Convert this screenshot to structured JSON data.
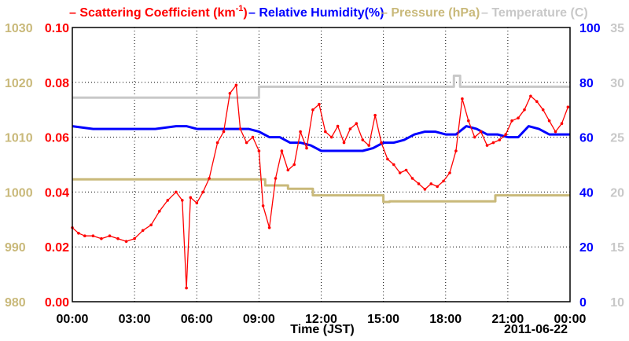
{
  "chart_data": {
    "type": "line",
    "date_label": "2011-06-22",
    "xlabel": "Time (JST)",
    "x_ticks": [
      "00:00",
      "03:00",
      "06:00",
      "09:00",
      "12:00",
      "15:00",
      "18:00",
      "21:00",
      "00:00"
    ],
    "x_range_hours": [
      0,
      24
    ],
    "grid": true,
    "legend_position": "top",
    "axes": {
      "pressure": {
        "side": "left-outer",
        "color": "#C9B97A",
        "range": [
          980,
          1030
        ],
        "ticks": [
          "980",
          "990",
          "1000",
          "1010",
          "1020",
          "1030"
        ]
      },
      "scattering": {
        "side": "left-inner",
        "color": "#FF0000",
        "range": [
          0,
          0.1
        ],
        "ticks": [
          "0.00",
          "0.02",
          "0.04",
          "0.06",
          "0.08",
          "0.10"
        ]
      },
      "humidity": {
        "side": "right-inner",
        "color": "#0000FF",
        "range": [
          0,
          100
        ],
        "ticks": [
          "0",
          "20",
          "40",
          "60",
          "80",
          "100"
        ]
      },
      "temperature": {
        "side": "right-outer",
        "color": "#C8C8C8",
        "range": [
          10,
          35
        ],
        "ticks": [
          "10",
          "15",
          "20",
          "25",
          "30",
          "35"
        ]
      }
    },
    "series": [
      {
        "name": "Scattering Coefficient (km⁻¹)",
        "legend_pre": "Scattering Coefficient (km",
        "legend_sup": "-1",
        "legend_post": ")",
        "color": "#FF0000",
        "axis": "scattering",
        "x": [
          0,
          0.3,
          0.6,
          1.0,
          1.4,
          1.8,
          2.2,
          2.6,
          3.0,
          3.4,
          3.8,
          4.2,
          4.6,
          5.0,
          5.3,
          5.5,
          5.7,
          6.0,
          6.3,
          6.6,
          7.0,
          7.3,
          7.6,
          7.9,
          8.1,
          8.4,
          8.7,
          9.0,
          9.2,
          9.5,
          9.8,
          10.1,
          10.4,
          10.7,
          11.0,
          11.3,
          11.6,
          11.9,
          12.2,
          12.5,
          12.8,
          13.1,
          13.4,
          13.7,
          14.0,
          14.3,
          14.6,
          14.9,
          15.2,
          15.5,
          15.8,
          16.1,
          16.4,
          16.7,
          17.0,
          17.3,
          17.6,
          17.9,
          18.2,
          18.5,
          18.8,
          19.1,
          19.4,
          19.7,
          20.0,
          20.3,
          20.6,
          20.9,
          21.2,
          21.5,
          21.8,
          22.1,
          22.4,
          22.7,
          23.0,
          23.3,
          23.6,
          23.9
        ],
        "y": [
          0.027,
          0.025,
          0.024,
          0.024,
          0.023,
          0.024,
          0.023,
          0.022,
          0.023,
          0.026,
          0.028,
          0.033,
          0.037,
          0.04,
          0.037,
          0.005,
          0.038,
          0.036,
          0.04,
          0.045,
          0.058,
          0.062,
          0.076,
          0.079,
          0.063,
          0.058,
          0.06,
          0.055,
          0.035,
          0.027,
          0.045,
          0.055,
          0.048,
          0.05,
          0.062,
          0.056,
          0.07,
          0.072,
          0.062,
          0.06,
          0.064,
          0.058,
          0.063,
          0.065,
          0.059,
          0.057,
          0.068,
          0.058,
          0.052,
          0.05,
          0.047,
          0.048,
          0.045,
          0.043,
          0.041,
          0.043,
          0.042,
          0.044,
          0.047,
          0.055,
          0.074,
          0.066,
          0.06,
          0.062,
          0.057,
          0.058,
          0.059,
          0.061,
          0.066,
          0.067,
          0.07,
          0.075,
          0.073,
          0.07,
          0.066,
          0.062,
          0.065,
          0.071
        ]
      },
      {
        "name": "Relative Humidity(%)",
        "color": "#0000FF",
        "axis": "humidity",
        "x": [
          0,
          1,
          2,
          3,
          4,
          5,
          5.5,
          6,
          7,
          8,
          8.5,
          9,
          9.5,
          10,
          10.5,
          11,
          11.5,
          12,
          12.5,
          13,
          13.5,
          14,
          14.5,
          15,
          15.5,
          16,
          16.5,
          17,
          17.5,
          18,
          18.5,
          19,
          19.5,
          20,
          20.5,
          21,
          21.5,
          22,
          22.5,
          23,
          23.5,
          24
        ],
        "y": [
          64,
          63,
          63,
          63,
          63,
          64,
          64,
          63,
          63,
          63,
          63,
          62,
          60,
          60,
          58,
          58,
          57,
          55,
          55,
          55,
          55,
          55,
          56,
          58,
          58,
          59,
          61,
          62,
          62,
          61,
          61,
          64,
          63,
          61,
          61,
          60,
          60,
          64,
          63,
          61,
          61,
          61
        ]
      },
      {
        "name": "Pressure (hPa)",
        "color": "#C9B97A",
        "axis": "pressure",
        "x": [
          0,
          9.3,
          9.3,
          10.4,
          10.4,
          11.6,
          11.6,
          13.2,
          13.2,
          15.0,
          15.0,
          15.3,
          15.3,
          20.4,
          20.4,
          24
        ],
        "y": [
          1002.3,
          1002.3,
          1001.2,
          1001.2,
          1000.6,
          1000.6,
          999.4,
          999.4,
          999.4,
          999.4,
          998.2,
          998.2,
          998.3,
          998.3,
          999.4,
          999.4
        ]
      },
      {
        "name": "Temperature (C)",
        "color": "#C8C8C8",
        "axis": "temperature",
        "x": [
          0,
          9.0,
          9.0,
          18.4,
          18.4,
          18.7,
          18.7,
          24
        ],
        "y": [
          28.6,
          28.6,
          29.6,
          29.6,
          30.6,
          30.6,
          29.6,
          29.6
        ]
      }
    ]
  }
}
